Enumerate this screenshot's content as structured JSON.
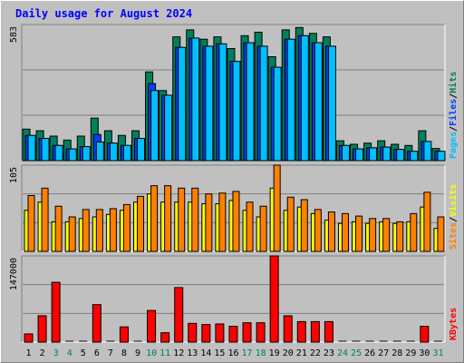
{
  "chart": {
    "title": "Daily usage for August 2024",
    "colors": {
      "background": "#c0c0c0",
      "plot_background": "#c0c0c0",
      "grid": "#808080",
      "title": "#0000ff",
      "hits": "#00805c",
      "files": "#0040ff",
      "pages": "#00c0ff",
      "visits": "#ffff00",
      "sites": "#ff8000",
      "kbytes": "#ff0000",
      "weekend_label": "#00805c",
      "weekday_label": "#000000"
    }
  },
  "chart_data": [
    {
      "type": "bar",
      "panel": "hits-files-pages",
      "ymax_label": "583",
      "ylim": [
        0,
        583
      ],
      "legend": [
        "Pages",
        "/",
        "Files",
        "/",
        "Hits"
      ],
      "categories": [
        "1",
        "2",
        "3",
        "4",
        "5",
        "6",
        "7",
        "8",
        "9",
        "10",
        "11",
        "12",
        "13",
        "14",
        "15",
        "16",
        "17",
        "18",
        "19",
        "20",
        "21",
        "22",
        "23",
        "24",
        "25",
        "26",
        "27",
        "28",
        "29",
        "30",
        "31"
      ],
      "weekend_days": [
        "3",
        "4",
        "10",
        "11",
        "17",
        "18",
        "24",
        "25",
        "31"
      ],
      "series": [
        {
          "name": "Hits",
          "values": [
            135,
            128,
            105,
            88,
            105,
            182,
            128,
            108,
            128,
            380,
            300,
            530,
            560,
            520,
            530,
            480,
            535,
            550,
            445,
            560,
            570,
            545,
            530,
            85,
            70,
            75,
            85,
            70,
            65,
            128,
            52
          ]
        },
        {
          "name": "Files",
          "values": [
            108,
            95,
            65,
            50,
            60,
            112,
            75,
            65,
            95,
            330,
            280,
            485,
            525,
            490,
            500,
            425,
            505,
            490,
            400,
            520,
            535,
            505,
            490,
            65,
            50,
            55,
            58,
            48,
            40,
            82,
            40
          ]
        },
        {
          "name": "Pages",
          "values": [
            108,
            95,
            65,
            50,
            60,
            80,
            75,
            65,
            95,
            300,
            280,
            485,
            525,
            490,
            500,
            425,
            505,
            490,
            400,
            520,
            535,
            505,
            490,
            65,
            50,
            55,
            58,
            48,
            40,
            82,
            40
          ]
        }
      ]
    },
    {
      "type": "bar",
      "panel": "visits-sites",
      "ymax_label": "105",
      "ylim": [
        0,
        105
      ],
      "legend": [
        "Sites",
        "/",
        "Visits"
      ],
      "categories": [
        "1",
        "2",
        "3",
        "4",
        "5",
        "6",
        "7",
        "8",
        "9",
        "10",
        "11",
        "12",
        "13",
        "14",
        "15",
        "16",
        "17",
        "18",
        "19",
        "20",
        "21",
        "22",
        "23",
        "24",
        "25",
        "26",
        "27",
        "28",
        "29",
        "30",
        "31"
      ],
      "series": [
        {
          "name": "Visits",
          "values": [
            50,
            60,
            36,
            36,
            40,
            42,
            45,
            50,
            60,
            70,
            60,
            60,
            60,
            58,
            58,
            62,
            50,
            42,
            77,
            50,
            54,
            46,
            38,
            34,
            36,
            34,
            36,
            34,
            36,
            54,
            28
          ]
        },
        {
          "name": "Sites",
          "values": [
            68,
            77,
            55,
            42,
            51,
            51,
            52,
            57,
            67,
            80,
            80,
            77,
            77,
            70,
            71,
            73,
            60,
            55,
            105,
            66,
            63,
            51,
            48,
            46,
            43,
            40,
            40,
            36,
            46,
            72,
            42
          ]
        }
      ]
    },
    {
      "type": "bar",
      "panel": "kbytes",
      "ymax_label": "147000",
      "ylim": [
        0,
        147000
      ],
      "legend": [
        "KBytes"
      ],
      "categories": [
        "1",
        "2",
        "3",
        "4",
        "5",
        "6",
        "7",
        "8",
        "9",
        "10",
        "11",
        "12",
        "13",
        "14",
        "15",
        "16",
        "17",
        "18",
        "19",
        "20",
        "21",
        "22",
        "23",
        "24",
        "25",
        "26",
        "27",
        "28",
        "29",
        "30",
        "31"
      ],
      "series": [
        {
          "name": "KBytes",
          "values": [
            14000,
            45000,
            102000,
            0,
            0,
            64000,
            0,
            26000,
            0,
            54000,
            16000,
            93000,
            32000,
            30000,
            31000,
            27000,
            33000,
            33000,
            147000,
            45000,
            35000,
            35000,
            35000,
            0,
            0,
            0,
            0,
            0,
            0,
            27000,
            0
          ]
        }
      ]
    }
  ]
}
